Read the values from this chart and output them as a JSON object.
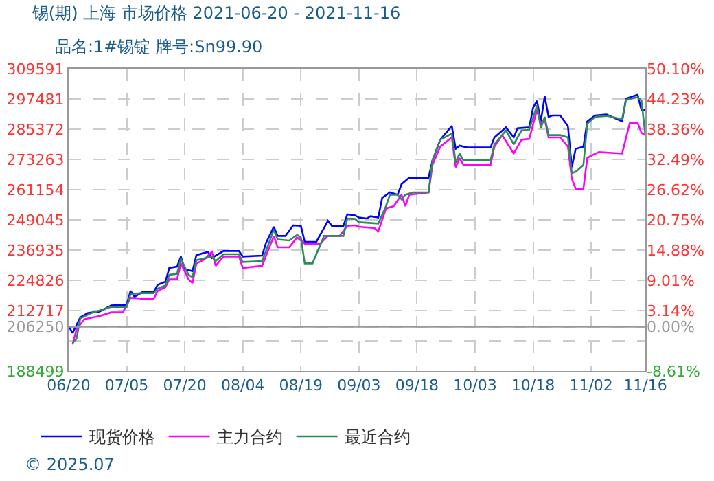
{
  "chart_data": {
    "type": "line",
    "title": "锡(期) 上海 市场价格 2021-06-20 - 2021-11-16",
    "subtitle": "品名:1#锡锭 牌号:Sn99.90",
    "annotations": [
      "© 2025.07"
    ],
    "series": [
      {
        "name": "现货价格",
        "color": "#0000ff",
        "x": [
          "2021-06-20",
          "2021-06-21",
          "2021-06-23",
          "2021-06-25",
          "2021-06-28",
          "2021-07-01",
          "2021-07-05",
          "2021-07-06",
          "2021-07-07",
          "2021-07-09",
          "2021-07-12",
          "2021-07-13",
          "2021-07-15",
          "2021-07-16",
          "2021-07-18",
          "2021-07-19",
          "2021-07-20",
          "2021-07-22",
          "2021-07-23",
          "2021-07-26",
          "2021-07-27",
          "2021-07-30",
          "2021-08-03",
          "2021-08-04",
          "2021-08-09",
          "2021-08-10",
          "2021-08-12",
          "2021-08-13",
          "2021-08-15",
          "2021-08-17",
          "2021-08-19",
          "2021-08-20",
          "2021-08-23",
          "2021-08-26",
          "2021-08-27",
          "2021-08-30",
          "2021-08-31",
          "2021-09-02",
          "2021-09-03",
          "2021-09-05",
          "2021-09-06",
          "2021-09-08",
          "2021-09-09",
          "2021-09-11",
          "2021-09-13",
          "2021-09-14",
          "2021-09-16",
          "2021-09-21",
          "2021-09-22",
          "2021-09-24",
          "2021-09-27",
          "2021-09-28",
          "2021-09-29",
          "2021-10-01",
          "2021-10-07",
          "2021-10-08",
          "2021-10-11",
          "2021-10-13",
          "2021-10-14",
          "2021-10-17",
          "2021-10-18",
          "2021-10-19",
          "2021-10-20",
          "2021-10-21",
          "2021-10-22",
          "2021-10-23",
          "2021-10-25",
          "2021-10-27",
          "2021-10-28",
          "2021-10-29",
          "2021-10-31",
          "2021-11-01",
          "2021-11-03",
          "2021-11-06",
          "2021-11-10",
          "2021-11-11",
          "2021-11-14",
          "2021-11-15",
          "2021-11-16"
        ],
        "values": [
          206500,
          203750,
          209970,
          211780,
          212330,
          214750,
          215080,
          220590,
          218220,
          220040,
          220260,
          223010,
          224270,
          229780,
          230330,
          234350,
          229230,
          228510,
          234900,
          236220,
          233800,
          236550,
          236550,
          234350,
          234730,
          239850,
          246290,
          242600,
          242600,
          246840,
          246680,
          240240,
          240240,
          248660,
          246680,
          246680,
          251240,
          250860,
          249980,
          249590,
          250530,
          249980,
          257850,
          260050,
          259110,
          263350,
          265940,
          265940,
          272880,
          281130,
          286640,
          277500,
          278760,
          278050,
          278050,
          282070,
          286090,
          282070,
          285750,
          286090,
          294000,
          296760,
          288500,
          298580,
          290330,
          290880,
          290880,
          286640,
          270130,
          277500,
          278380,
          288500,
          290880,
          291260,
          288500,
          297640,
          299130,
          293070,
          293070
        ]
      },
      {
        "name": "主力合约",
        "color": "#ff00ff",
        "x": [
          "2021-06-21",
          "2021-06-22",
          "2021-06-24",
          "2021-06-28",
          "2021-07-01",
          "2021-07-04",
          "2021-07-06",
          "2021-07-09",
          "2021-07-12",
          "2021-07-13",
          "2021-07-15",
          "2021-07-16",
          "2021-07-18",
          "2021-07-19",
          "2021-07-21",
          "2021-07-22",
          "2021-07-23",
          "2021-07-25",
          "2021-07-27",
          "2021-07-28",
          "2021-07-30",
          "2021-08-03",
          "2021-08-04",
          "2021-08-09",
          "2021-08-12",
          "2021-08-13",
          "2021-08-16",
          "2021-08-18",
          "2021-08-20",
          "2021-08-24",
          "2021-08-26",
          "2021-08-29",
          "2021-08-31",
          "2021-09-02",
          "2021-09-03",
          "2021-09-07",
          "2021-09-08",
          "2021-09-10",
          "2021-09-12",
          "2021-09-14",
          "2021-09-15",
          "2021-09-16",
          "2021-09-21",
          "2021-09-22",
          "2021-09-24",
          "2021-09-27",
          "2021-09-28",
          "2021-09-29",
          "2021-09-30",
          "2021-10-07",
          "2021-10-08",
          "2021-10-10",
          "2021-10-13",
          "2021-10-15",
          "2021-10-17",
          "2021-10-19",
          "2021-10-20",
          "2021-10-21",
          "2021-10-22",
          "2021-10-25",
          "2021-10-27",
          "2021-10-28",
          "2021-10-29",
          "2021-10-31",
          "2021-11-01",
          "2021-11-02",
          "2021-11-04",
          "2021-11-10",
          "2021-11-12",
          "2021-11-14",
          "2021-11-15",
          "2021-11-16"
        ],
        "values": [
          199120,
          205010,
          209250,
          210510,
          211990,
          211990,
          217840,
          217500,
          217500,
          220590,
          222070,
          225210,
          225210,
          231600,
          225210,
          223720,
          231600,
          233080,
          236220,
          230660,
          234350,
          234350,
          229780,
          230660,
          242600,
          238030,
          238030,
          242050,
          239520,
          239520,
          242600,
          242600,
          246680,
          246840,
          246290,
          245740,
          244470,
          253610,
          254550,
          259110,
          254550,
          259110,
          260050,
          271060,
          278380,
          282070,
          270130,
          273810,
          271060,
          271060,
          278380,
          282990,
          275620,
          281130,
          281520,
          293070,
          287570,
          289390,
          282070,
          282070,
          278380,
          265560,
          261540,
          261540,
          273810,
          274750,
          276180,
          275620,
          287960,
          287960,
          283880,
          282990
        ]
      },
      {
        "name": "最近合约",
        "color": "#2e8b57",
        "x": [
          "2021-06-21",
          "2021-06-22",
          "2021-06-23",
          "2021-06-26",
          "2021-07-01",
          "2021-07-05",
          "2021-07-06",
          "2021-07-09",
          "2021-07-12",
          "2021-07-13",
          "2021-07-15",
          "2021-07-16",
          "2021-07-18",
          "2021-07-19",
          "2021-07-21",
          "2021-07-22",
          "2021-07-23",
          "2021-07-27",
          "2021-07-28",
          "2021-07-30",
          "2021-08-03",
          "2021-08-04",
          "2021-08-09",
          "2021-08-12",
          "2021-08-13",
          "2021-08-16",
          "2021-08-18",
          "2021-08-19",
          "2021-08-20",
          "2021-08-22",
          "2021-08-25",
          "2021-08-30",
          "2021-08-31",
          "2021-09-02",
          "2021-09-03",
          "2021-09-08",
          "2021-09-10",
          "2021-09-11",
          "2021-09-13",
          "2021-09-14",
          "2021-09-15",
          "2021-09-17",
          "2021-09-21",
          "2021-09-22",
          "2021-09-24",
          "2021-09-27",
          "2021-09-28",
          "2021-09-29",
          "2021-09-30",
          "2021-10-07",
          "2021-10-08",
          "2021-10-11",
          "2021-10-13",
          "2021-10-15",
          "2021-10-17",
          "2021-10-19",
          "2021-10-20",
          "2021-10-21",
          "2021-10-22",
          "2021-10-25",
          "2021-10-27",
          "2021-10-28",
          "2021-10-29",
          "2021-10-31",
          "2021-11-01",
          "2021-11-03",
          "2021-11-06",
          "2021-11-10",
          "2021-11-11",
          "2021-11-14",
          "2021-11-15",
          "2021-11-16"
        ],
        "values": [
          199890,
          201320,
          209580,
          211780,
          214200,
          214200,
          219320,
          219710,
          219710,
          221520,
          222790,
          227030,
          227410,
          233470,
          227030,
          226090,
          232910,
          234350,
          232530,
          235280,
          235280,
          232150,
          232530,
          245030,
          241170,
          240790,
          242990,
          242050,
          231600,
          231600,
          242600,
          242600,
          249590,
          249420,
          248110,
          247560,
          254550,
          259110,
          259110,
          257300,
          259110,
          260050,
          260050,
          272880,
          281130,
          283550,
          271990,
          275620,
          272880,
          272880,
          279320,
          284820,
          279320,
          284820,
          285200,
          294890,
          285750,
          290330,
          282990,
          282990,
          282070,
          267760,
          268310,
          271060,
          287570,
          290330,
          290710,
          289390,
          297090,
          298190,
          296760,
          282990
        ]
      }
    ],
    "xlim": [
      "2021-06-20",
      "2021-11-16"
    ],
    "xticks": [
      {
        "value": "2021-06-20",
        "label": "06/20"
      },
      {
        "value": "2021-07-05",
        "label": "07/05"
      },
      {
        "value": "2021-07-20",
        "label": "07/20"
      },
      {
        "value": "2021-08-04",
        "label": "08/04"
      },
      {
        "value": "2021-08-19",
        "label": "08/19"
      },
      {
        "value": "2021-09-03",
        "label": "09/03"
      },
      {
        "value": "2021-09-18",
        "label": "09/18"
      },
      {
        "value": "2021-10-03",
        "label": "10/03"
      },
      {
        "value": "2021-10-18",
        "label": "10/18"
      },
      {
        "value": "2021-11-02",
        "label": "11/02"
      },
      {
        "value": "2021-11-16",
        "label": "11/16"
      }
    ],
    "ylim": [
      188499,
      309591
    ],
    "yticks": [
      188499,
      {
        "value": 200608,
        "label": null
      },
      206250,
      212717,
      224826,
      236935,
      249045,
      261154,
      273263,
      285372,
      297481,
      309591
    ],
    "y2lim": [
      -8.61,
      50.1
    ],
    "y2ticks": [
      {
        "value": -8.61,
        "label": "-8.61%"
      },
      {
        "value": -2.74,
        "label": null
      },
      {
        "value": 0,
        "label": "0.00%"
      },
      {
        "value": 3.14,
        "label": "3.14%"
      },
      {
        "value": 9.01,
        "label": "9.01%"
      },
      {
        "value": 14.88,
        "label": "14.88%"
      },
      {
        "value": 20.75,
        "label": "20.75%"
      },
      {
        "value": 26.62,
        "label": "26.62%"
      },
      {
        "value": 32.49,
        "label": "32.49%"
      },
      {
        "value": 38.36,
        "label": "38.36%"
      },
      {
        "value": 44.23,
        "label": "44.23%"
      },
      {
        "value": 50.1,
        "label": "50.10%"
      }
    ],
    "ref_lines": [
      {
        "axis": "y",
        "value": 206250,
        "color": "#999999",
        "line_style": "solid"
      }
    ],
    "grid": true,
    "legend": "bottom",
    "marker": "none",
    "line_style": "solid"
  }
}
